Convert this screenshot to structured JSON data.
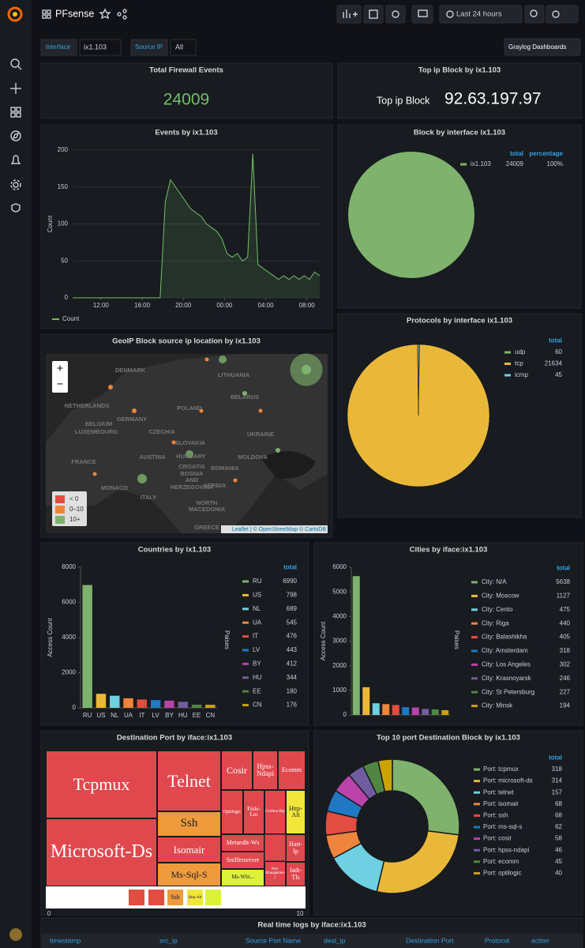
{
  "header": {
    "title": "PFsense",
    "time_range": "Last 24 hours"
  },
  "variables": [
    {
      "label": "Interface",
      "value": "ix1.103"
    },
    {
      "label": "Source IP",
      "value": "All"
    }
  ],
  "links": {
    "dashboards": "Graylog Dashboards"
  },
  "panels": {
    "total_events": {
      "title": "Total Firewall Events",
      "value": 24009,
      "color": "#73bf69"
    },
    "top_ip": {
      "title": "Top ip Block by ix1.103",
      "label": "Top ip Block",
      "value": "92.63.197.97"
    },
    "events": {
      "type": "line",
      "title": "Events by ix1.103",
      "y_label": "Count",
      "x": [
        0,
        0.5,
        1,
        1.5,
        2,
        2.5,
        3,
        3.5,
        4,
        4.5,
        5,
        5.5,
        6,
        6.5,
        7,
        7.5,
        8,
        8.5,
        9,
        9.5,
        10,
        10.5,
        11,
        11.5,
        12,
        12.5,
        13,
        13.5,
        14,
        14.5,
        15,
        15.5,
        16,
        16.5,
        17,
        17.5,
        18,
        18.5,
        19,
        19.5,
        20,
        20.5,
        21,
        21.5,
        22,
        22.5,
        23,
        23.5,
        24
      ],
      "series": [
        {
          "name": "Count",
          "color": "#73bf69",
          "values": [
            0,
            0,
            0,
            0,
            0,
            0,
            0,
            0,
            0,
            0,
            0,
            0,
            0,
            0,
            0,
            0,
            0,
            0,
            130,
            160,
            150,
            140,
            130,
            120,
            115,
            110,
            100,
            95,
            90,
            80,
            60,
            55,
            60,
            50,
            55,
            195,
            45,
            40,
            35,
            30,
            25,
            30,
            25,
            30,
            25,
            30,
            25,
            35,
            30
          ]
        }
      ],
      "xlim": [
        0,
        24
      ],
      "xticks": [
        {
          "value": 2.75,
          "label": "12:00"
        },
        {
          "value": 6.75,
          "label": "16:00"
        },
        {
          "value": 10.75,
          "label": "20:00"
        },
        {
          "value": 14.75,
          "label": "00:00"
        },
        {
          "value": 18.75,
          "label": "04:00"
        },
        {
          "value": 22.75,
          "label": "08:00"
        }
      ],
      "ylim": [
        0,
        200
      ],
      "yticks": [
        0,
        50,
        100,
        150,
        200
      ],
      "grid": true
    },
    "block_interface": {
      "type": "pie",
      "title": "Block by interface ix1.103",
      "columns": [
        "total",
        "percentage"
      ],
      "categories": [
        "ix1.103"
      ],
      "values": [
        24009
      ],
      "percentages": [
        100
      ],
      "percentage_labels": [
        "100%"
      ],
      "colors": [
        "#7eb26d"
      ]
    },
    "protocols": {
      "type": "pie",
      "title": "Protocols by interface ix1.103",
      "columns": [
        "total"
      ],
      "categories": [
        "udp",
        "tcp",
        "icmp"
      ],
      "values": [
        60,
        21634,
        45
      ],
      "colors": [
        "#7eb26d",
        "#eab839",
        "#6ed0e0"
      ]
    },
    "geoip": {
      "title": "GeoIP Block source ip location by ix1.103",
      "labels": [
        "DENMARK",
        "LITHUANIA",
        "NETHERLANDS",
        "BELARUS",
        "BELGIUM",
        "GERMANY",
        "POLAND",
        "LUXEMBOURG",
        "CZECHIA",
        "UKRAINE",
        "SLOVAKIA",
        "FRANCE",
        "AUSTRIA",
        "HUNGARY",
        "MOLDOVA",
        "CROATIA",
        "BOSNIA",
        "AND",
        "ROMANIA",
        "HERZEGOVINA",
        "MONACO",
        "ITALY",
        "SERBIA",
        "NORTH",
        "MACEDONIA",
        "GREECE"
      ],
      "zoom": [
        "+",
        "−"
      ],
      "legend": [
        "< 0",
        "0–10",
        "10+"
      ],
      "legend_colors": [
        "#e24d42",
        "#ef843c",
        "#7eb26d"
      ],
      "attribution": "Leaflet | © OpenStreetMap © CartoDB"
    },
    "countries": {
      "type": "bar",
      "title": "Countries by ix1.103",
      "y_label": "Access Count",
      "legend_label": "Paises",
      "columns": [
        "total"
      ],
      "categories": [
        "RU",
        "US",
        "NL",
        "UA",
        "IT",
        "LV",
        "BY",
        "HU",
        "EE",
        "CN"
      ],
      "values": [
        6990,
        798,
        689,
        545,
        476,
        443,
        412,
        344,
        180,
        176
      ],
      "colors": [
        "#7eb26d",
        "#eab839",
        "#6ed0e0",
        "#ef843c",
        "#e24d42",
        "#1f78c1",
        "#ba43a9",
        "#705da0",
        "#508642",
        "#cca300"
      ],
      "ylim": [
        0,
        8000
      ],
      "yticks": [
        0,
        2000,
        4000,
        6000,
        8000
      ]
    },
    "cities": {
      "type": "bar",
      "title": "Cities by iface:ix1.103",
      "y_label": "Access Count",
      "legend_label": "Paises",
      "columns": [
        "total"
      ],
      "categories": [
        "City: N/A",
        "City: Moscow",
        "City: Cento",
        "City: Riga",
        "City: Balashikha",
        "City: Amsterdam",
        "City: Los Angeles",
        "City: Krasnoyarsk",
        "City: St Petersburg",
        "City: Minsk"
      ],
      "values": [
        5638,
        1127,
        475,
        440,
        405,
        318,
        302,
        246,
        227,
        194
      ],
      "colors": [
        "#7eb26d",
        "#eab839",
        "#6ed0e0",
        "#ef843c",
        "#e24d42",
        "#1f78c1",
        "#ba43a9",
        "#705da0",
        "#508642",
        "#cca300"
      ],
      "ylim": [
        0,
        6000
      ],
      "yticks": [
        0,
        1000,
        2000,
        3000,
        4000,
        5000,
        6000
      ]
    },
    "dest_port": {
      "type": "treemap",
      "title": "Destination Port by iface:ix1.103",
      "cells": [
        "Tcpmux",
        "Microsoft-Ds",
        "Telnet",
        "Ssh",
        "Isomair",
        "Ms-Sql-S",
        "Cosir",
        "Hpss-Ndapi",
        "Ecomm",
        "Optilogic",
        "Finle-Lm",
        "Codima-Rtp",
        "Http-Alt",
        "Metaedit-Ws",
        "Snifferserver",
        "Ms-Wbt...",
        "Net-Management",
        "Hart-Ip",
        "Iadt-Tls"
      ],
      "legend": [
        "Ssh",
        "Http-Alt"
      ],
      "xticks": [
        0,
        10
      ]
    },
    "top_ports": {
      "type": "donut",
      "title": "Top 10 port Destination Block by ix1.103",
      "columns": [
        "total"
      ],
      "categories": [
        "Port: tcpmux",
        "Port: microsoft-ds",
        "Port: telnet",
        "Port: isomair",
        "Port: ssh",
        "Port: ms-sql-s",
        "Port: cosir",
        "Port: hpss-ndapi",
        "Port: ecomm",
        "Port: optilogic"
      ],
      "values": [
        318,
        314,
        157,
        68,
        68,
        62,
        58,
        46,
        45,
        40
      ],
      "colors": [
        "#7eb26d",
        "#eab839",
        "#6ed0e0",
        "#ef843c",
        "#e24d42",
        "#1f78c1",
        "#ba43a9",
        "#705da0",
        "#508642",
        "#cca300"
      ]
    },
    "logs": {
      "title": "Real time logs by iface:ix1.103",
      "columns": [
        "timestamp",
        "src_ip",
        "Source Port Name",
        "dest_ip",
        "Destination Port",
        "Protocol",
        "action"
      ]
    }
  }
}
